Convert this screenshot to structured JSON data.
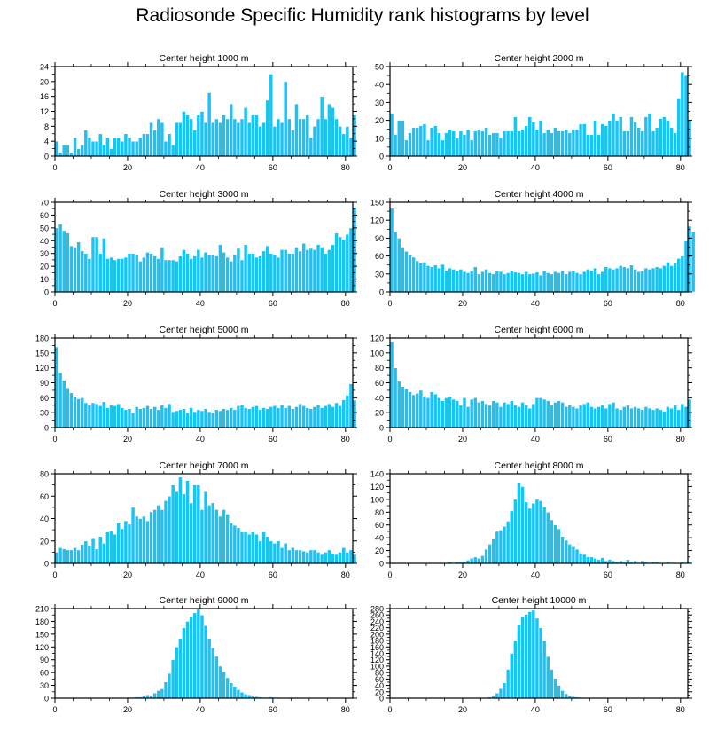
{
  "page": {
    "title": "Radiosonde Specific Humidity rank histograms by level"
  },
  "style": {
    "bar_color": "#19c3f5",
    "bar_edge": "#ffffff",
    "axis_color": "#000000"
  },
  "chart_data": [
    {
      "type": "bar",
      "title": "Center height 1000 m",
      "x_start": 0,
      "xticks": [
        0,
        20,
        40,
        60,
        80
      ],
      "xlim": [
        0,
        82
      ],
      "yticks": [
        0,
        4,
        8,
        12,
        16,
        20,
        24
      ],
      "ylim": [
        0,
        24
      ],
      "values": [
        4,
        1,
        3,
        3,
        1,
        5,
        2,
        3,
        7,
        5,
        4,
        4,
        6,
        3,
        5,
        2,
        5,
        5,
        4,
        6,
        5,
        4,
        4,
        5,
        6,
        6,
        9,
        7,
        10,
        9,
        4,
        6,
        3,
        9,
        9,
        12,
        11,
        10,
        7,
        11,
        12,
        9,
        17,
        9,
        10,
        9,
        11,
        10,
        14,
        10,
        9,
        10,
        13,
        9,
        11,
        11,
        8,
        9,
        15,
        22,
        8,
        10,
        9,
        20,
        10,
        7,
        14,
        10,
        10,
        11,
        5,
        8,
        10,
        16,
        10,
        14,
        13,
        10,
        8,
        6,
        8,
        5,
        11
      ]
    },
    {
      "type": "bar",
      "title": "Center height 2000 m",
      "x_start": 0,
      "xticks": [
        0,
        20,
        40,
        60,
        80
      ],
      "xlim": [
        0,
        82
      ],
      "yticks": [
        0,
        10,
        20,
        30,
        40,
        50
      ],
      "ylim": [
        0,
        50
      ],
      "values": [
        24,
        12,
        20,
        20,
        9,
        13,
        16,
        16,
        17,
        18,
        9,
        16,
        17,
        13,
        9,
        13,
        15,
        14,
        10,
        14,
        12,
        15,
        9,
        14,
        15,
        14,
        16,
        12,
        13,
        13,
        10,
        14,
        14,
        14,
        22,
        14,
        15,
        17,
        22,
        19,
        15,
        20,
        13,
        15,
        13,
        16,
        14,
        14,
        15,
        13,
        15,
        15,
        18,
        18,
        12,
        12,
        20,
        12,
        18,
        17,
        20,
        24,
        20,
        22,
        14,
        14,
        22,
        19,
        16,
        14,
        22,
        24,
        14,
        16,
        21,
        22,
        20,
        16,
        13,
        32,
        47,
        45,
        20
      ]
    },
    {
      "type": "bar",
      "title": "Center height 3000 m",
      "x_start": 0,
      "xticks": [
        0,
        20,
        40,
        60,
        80
      ],
      "xlim": [
        0,
        82
      ],
      "yticks": [
        0,
        10,
        20,
        30,
        40,
        50,
        60,
        70
      ],
      "ylim": [
        0,
        70
      ],
      "values": [
        50,
        53,
        48,
        46,
        36,
        35,
        39,
        32,
        30,
        26,
        43,
        43,
        30,
        42,
        26,
        27,
        25,
        26,
        26,
        27,
        30,
        30,
        29,
        24,
        27,
        31,
        30,
        28,
        26,
        35,
        25,
        25,
        25,
        24,
        28,
        33,
        30,
        26,
        28,
        33,
        27,
        31,
        29,
        29,
        28,
        37,
        31,
        27,
        24,
        29,
        34,
        25,
        37,
        30,
        30,
        27,
        28,
        32,
        36,
        30,
        29,
        27,
        33,
        33,
        30,
        30,
        35,
        32,
        38,
        33,
        34,
        33,
        37,
        35,
        30,
        33,
        37,
        46,
        43,
        41,
        45,
        50,
        66
      ]
    },
    {
      "type": "bar",
      "title": "Center height 4000 m",
      "x_start": 0,
      "xticks": [
        0,
        20,
        40,
        60,
        80
      ],
      "xlim": [
        0,
        82
      ],
      "yticks": [
        0,
        30,
        60,
        90,
        120,
        150
      ],
      "ylim": [
        0,
        150
      ],
      "values": [
        140,
        100,
        90,
        75,
        68,
        62,
        58,
        52,
        48,
        50,
        44,
        42,
        45,
        40,
        46,
        36,
        40,
        38,
        35,
        38,
        34,
        32,
        35,
        42,
        30,
        34,
        38,
        32,
        30,
        35,
        34,
        30,
        32,
        36,
        33,
        32,
        30,
        34,
        30,
        31,
        33,
        28,
        35,
        32,
        30,
        34,
        32,
        36,
        30,
        34,
        36,
        32,
        30,
        34,
        38,
        36,
        40,
        30,
        34,
        42,
        40,
        38,
        40,
        44,
        42,
        40,
        45,
        38,
        34,
        35,
        40,
        38,
        40,
        42,
        40,
        44,
        50,
        44,
        48,
        56,
        60,
        85,
        110,
        100
      ]
    },
    {
      "type": "bar",
      "title": "Center height 5000 m",
      "x_start": 0,
      "xticks": [
        0,
        20,
        40,
        60,
        80
      ],
      "xlim": [
        0,
        82
      ],
      "yticks": [
        0,
        30,
        60,
        90,
        120,
        150,
        180
      ],
      "ylim": [
        0,
        180
      ],
      "values": [
        162,
        110,
        95,
        80,
        70,
        62,
        58,
        60,
        50,
        45,
        50,
        48,
        44,
        52,
        40,
        45,
        44,
        48,
        40,
        36,
        38,
        30,
        42,
        38,
        40,
        44,
        38,
        42,
        36,
        45,
        40,
        48,
        32,
        34,
        36,
        38,
        30,
        40,
        32,
        36,
        34,
        38,
        32,
        30,
        36,
        34,
        38,
        36,
        40,
        36,
        44,
        46,
        40,
        38,
        42,
        44,
        36,
        40,
        38,
        42,
        44,
        40,
        46,
        40,
        44,
        38,
        42,
        48,
        44,
        40,
        38,
        42,
        46,
        40,
        44,
        48,
        42,
        50,
        44,
        56,
        65,
        88,
        55
      ]
    },
    {
      "type": "bar",
      "title": "Center height 6000 m",
      "x_start": 0,
      "xticks": [
        0,
        20,
        40,
        60,
        80
      ],
      "xlim": [
        0,
        82
      ],
      "yticks": [
        0,
        20,
        40,
        60,
        80,
        100,
        120
      ],
      "ylim": [
        0,
        120
      ],
      "values": [
        115,
        80,
        62,
        55,
        52,
        48,
        44,
        46,
        50,
        42,
        40,
        48,
        45,
        40,
        36,
        40,
        42,
        38,
        36,
        30,
        40,
        28,
        38,
        40,
        34,
        36,
        32,
        30,
        36,
        34,
        28,
        34,
        32,
        36,
        30,
        28,
        34,
        30,
        26,
        32,
        40,
        40,
        38,
        36,
        30,
        34,
        36,
        34,
        28,
        30,
        28,
        26,
        30,
        32,
        34,
        28,
        26,
        28,
        30,
        26,
        32,
        34,
        26,
        24,
        28,
        30,
        26,
        28,
        26,
        24,
        28,
        26,
        24,
        26,
        24,
        22,
        28,
        26,
        30,
        24,
        32,
        28,
        38
      ]
    },
    {
      "type": "bar",
      "title": "Center height 7000 m",
      "x_start": 0,
      "xticks": [
        0,
        20,
        40,
        60,
        80
      ],
      "xlim": [
        0,
        82
      ],
      "yticks": [
        0,
        20,
        40,
        60,
        80
      ],
      "ylim": [
        0,
        80
      ],
      "values": [
        10,
        14,
        13,
        12,
        12,
        14,
        12,
        17,
        20,
        16,
        22,
        13,
        24,
        18,
        28,
        29,
        26,
        36,
        31,
        38,
        35,
        50,
        42,
        40,
        42,
        38,
        46,
        48,
        52,
        48,
        56,
        60,
        70,
        64,
        77,
        62,
        74,
        54,
        70,
        70,
        48,
        64,
        52,
        54,
        48,
        42,
        48,
        44,
        36,
        34,
        32,
        28,
        28,
        26,
        28,
        26,
        20,
        28,
        24,
        20,
        18,
        20,
        14,
        18,
        12,
        14,
        12,
        12,
        11,
        10,
        12,
        12,
        10,
        8,
        10,
        12,
        9,
        8,
        10,
        14,
        10,
        12,
        8
      ]
    },
    {
      "type": "bar",
      "title": "Center height 8000 m",
      "x_start": 0,
      "xticks": [
        0,
        20,
        40,
        60,
        80
      ],
      "xlim": [
        0,
        82
      ],
      "yticks": [
        0,
        20,
        40,
        60,
        80,
        100,
        120,
        140
      ],
      "ylim": [
        0,
        140
      ],
      "values": [
        0,
        0,
        0,
        0,
        0,
        0,
        0,
        0,
        0,
        0,
        0,
        0,
        0,
        0,
        1,
        1,
        2,
        1,
        2,
        2,
        3,
        5,
        8,
        10,
        8,
        12,
        22,
        30,
        38,
        50,
        52,
        58,
        66,
        82,
        100,
        126,
        120,
        96,
        86,
        94,
        100,
        98,
        88,
        80,
        68,
        60,
        54,
        42,
        36,
        30,
        26,
        22,
        16,
        14,
        10,
        10,
        8,
        6,
        9,
        4,
        6,
        4,
        3,
        4,
        2,
        6,
        2,
        4,
        1,
        4,
        2,
        1,
        2,
        2,
        1,
        1,
        2,
        1,
        1,
        1,
        2,
        1,
        2
      ]
    },
    {
      "type": "bar",
      "title": "Center height 9000 m",
      "x_start": 0,
      "xticks": [
        0,
        20,
        40,
        60,
        80
      ],
      "xlim": [
        0,
        82
      ],
      "yticks": [
        0,
        30,
        60,
        90,
        120,
        150,
        180,
        210
      ],
      "ylim": [
        0,
        210
      ],
      "values": [
        0,
        0,
        0,
        0,
        0,
        0,
        0,
        0,
        0,
        0,
        0,
        0,
        0,
        0,
        0,
        0,
        0,
        0,
        0,
        0,
        0,
        2,
        3,
        3,
        6,
        8,
        6,
        12,
        18,
        22,
        38,
        58,
        90,
        120,
        140,
        165,
        180,
        192,
        200,
        212,
        195,
        170,
        140,
        118,
        98,
        75,
        62,
        48,
        36,
        28,
        20,
        14,
        10,
        8,
        5,
        4,
        3,
        2,
        2,
        3,
        2,
        2,
        1,
        1,
        2,
        1,
        2,
        1,
        1,
        0,
        0,
        0,
        0,
        0,
        0,
        0,
        0,
        0,
        0,
        0,
        0,
        0,
        0
      ]
    },
    {
      "type": "bar",
      "title": "Center height 10000 m",
      "x_start": 0,
      "xticks": [
        0,
        20,
        40,
        60,
        80
      ],
      "xlim": [
        0,
        82
      ],
      "yticks": [
        0,
        20,
        40,
        60,
        80,
        100,
        120,
        140,
        160,
        180,
        200,
        220,
        240,
        260,
        280
      ],
      "ylim": [
        0,
        280
      ],
      "values": [
        0,
        0,
        0,
        0,
        0,
        0,
        0,
        0,
        0,
        0,
        0,
        0,
        0,
        0,
        0,
        0,
        0,
        0,
        0,
        0,
        0,
        0,
        0,
        1,
        1,
        2,
        2,
        4,
        8,
        16,
        30,
        48,
        90,
        140,
        180,
        230,
        255,
        262,
        270,
        275,
        250,
        220,
        180,
        130,
        90,
        62,
        40,
        24,
        14,
        8,
        5,
        4,
        3,
        2,
        2,
        1,
        2,
        1,
        1,
        1,
        1,
        0,
        1,
        0,
        0,
        0,
        0,
        0,
        0,
        0,
        0,
        0,
        0,
        0,
        0,
        0,
        0,
        0,
        0,
        0,
        0,
        0,
        0
      ]
    }
  ]
}
